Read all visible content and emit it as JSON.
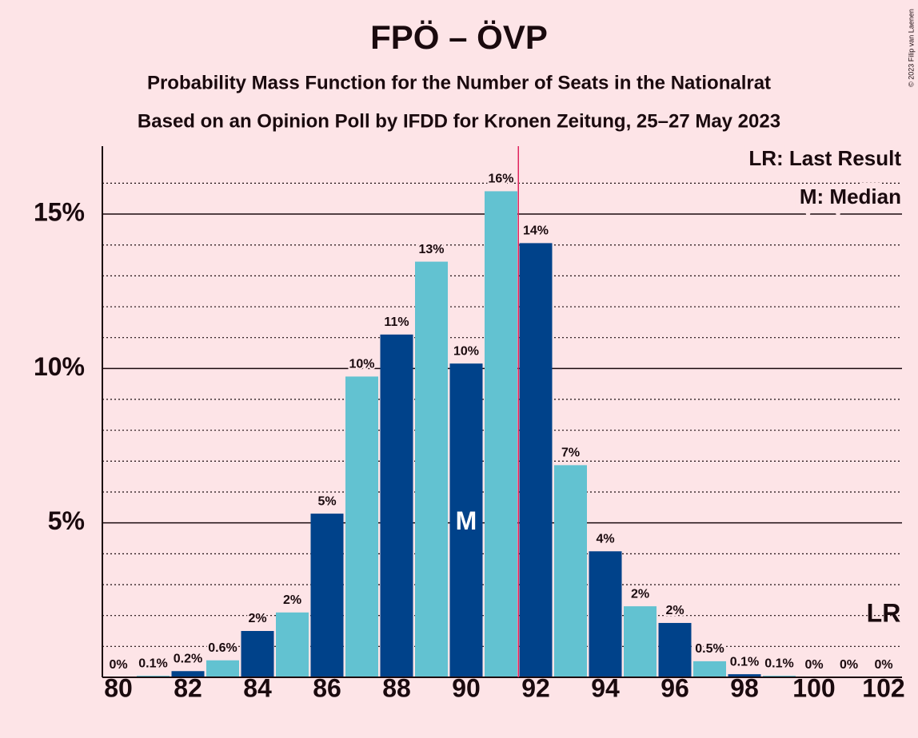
{
  "chart_data": {
    "type": "bar",
    "title": "FPÖ – ÖVP",
    "subtitle": "Probability Mass Function for the Number of Seats in the Nationalrat",
    "subtitle2": "Based on an Opinion Poll by IFDD for Kronen Zeitung, 25–27 May 2023",
    "copyright": "© 2023 Filip van Laenen",
    "categories": [
      80,
      null,
      82,
      null,
      84,
      null,
      86,
      null,
      88,
      null,
      90,
      null,
      92,
      null,
      94,
      null,
      96,
      null,
      98,
      null,
      100,
      null,
      102
    ],
    "values": [
      0,
      0.05,
      0.2,
      0.55,
      1.5,
      2.1,
      5.3,
      9.74,
      11.1,
      13.46,
      10.16,
      15.74,
      14.06,
      6.87,
      4.08,
      2.3,
      1.76,
      0.52,
      0.1,
      0.05,
      0,
      0,
      0
    ],
    "value_labels": [
      "0%",
      "0.1%",
      "0.2%",
      "0.6%",
      "2%",
      "2%",
      "5%",
      "10%",
      "11%",
      "13%",
      "10%",
      "16%",
      "14%",
      "7%",
      "4%",
      "2%",
      "2%",
      "0.5%",
      "0.1%",
      "0.1%",
      "0%",
      "0%",
      "0%"
    ],
    "colors": [
      "#00428a",
      "#62c2d1"
    ],
    "ylim": [
      0,
      17.2
    ],
    "yticks": [
      {
        "value": 5,
        "label": "5%"
      },
      {
        "value": 10,
        "label": "10%"
      },
      {
        "value": 15,
        "label": "15%"
      }
    ],
    "minor_yticks": [
      1,
      2,
      3,
      4,
      6,
      7,
      8,
      9,
      11,
      12,
      13,
      14,
      16
    ],
    "grid": true,
    "majority_x": 91.5,
    "median": {
      "index": 10,
      "label": "M"
    },
    "last_result": {
      "index": 22,
      "label": "LR"
    },
    "legend": [
      "LR: Last Result",
      "M: Median"
    ]
  }
}
